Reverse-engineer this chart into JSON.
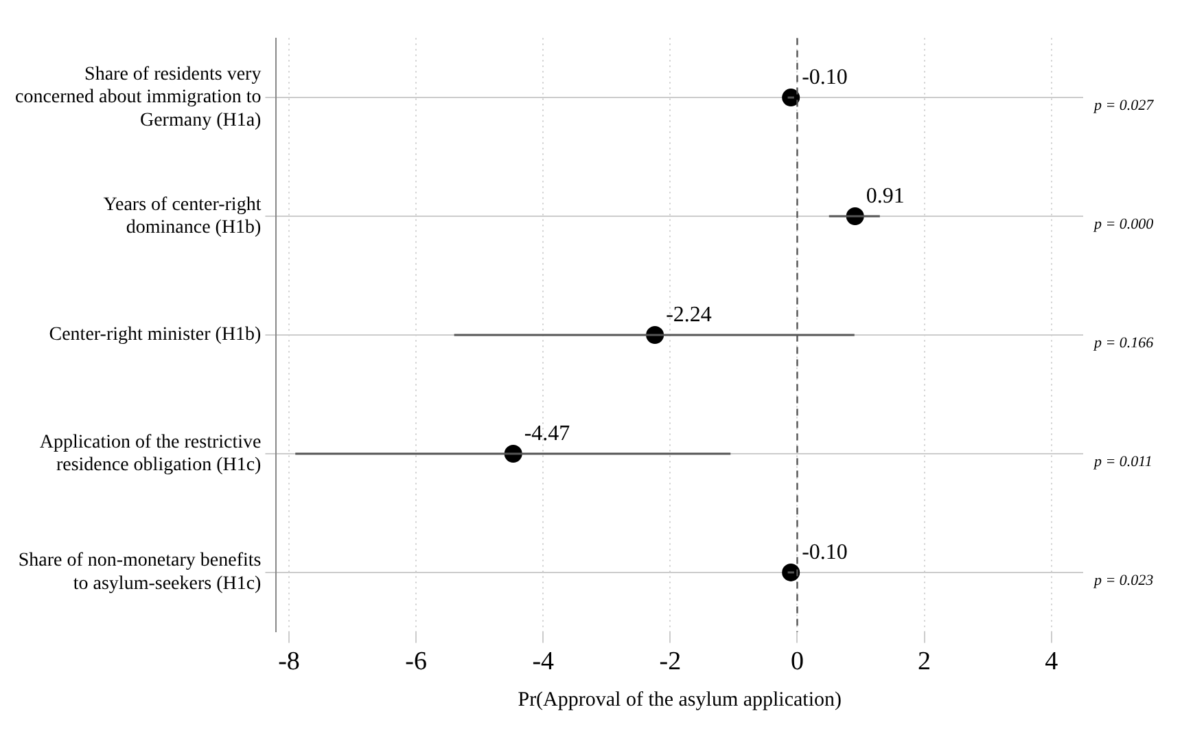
{
  "chart_data": {
    "type": "scatter",
    "orientation": "horizontal",
    "categories": [
      "Share of residents very concerned about immigration to Germany (H1a)",
      "Years of center-right dominance (H1b)",
      "Center-right minister (H1b)",
      "Application of the restrictive residence obligation (H1c)",
      "Share of non-monetary benefits to asylum-seekers (H1c)"
    ],
    "values": [
      -0.1,
      0.91,
      -2.24,
      -4.47,
      -0.1
    ],
    "errors": [
      [
        -0.15,
        -0.05
      ],
      [
        0.5,
        1.3
      ],
      [
        -5.4,
        0.9
      ],
      [
        -7.9,
        -1.05
      ],
      [
        -0.15,
        -0.05
      ]
    ],
    "value_labels": [
      "-0.10",
      "0.91",
      "-2.24",
      "-4.47",
      "-0.10"
    ],
    "color": "#000000",
    "marker": "circle",
    "xlabel": "Pr(Approval of the asylum application)",
    "xlim": [
      -8.2,
      4.5
    ],
    "xticks": [
      -8,
      -6,
      -4,
      -2,
      0,
      2,
      4
    ],
    "grid": true,
    "ref_lines": [
      {
        "axis": "x",
        "value": 0,
        "line_style": "dashed",
        "color": "#555555"
      }
    ],
    "annotations": [
      "p = 0.027",
      "p = 0.000",
      "p = 0.166",
      "p = 0.011",
      "p = 0.023"
    ]
  }
}
